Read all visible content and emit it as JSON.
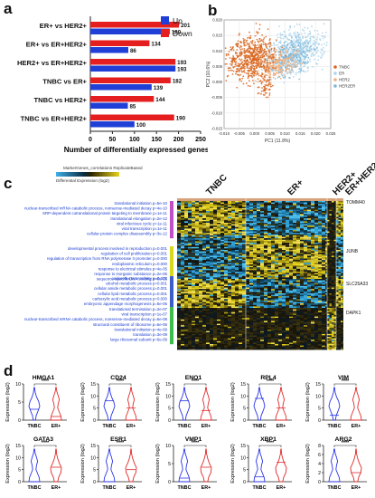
{
  "panel_labels": {
    "a": "a",
    "b": "b",
    "c": "c",
    "d": "d"
  },
  "chart_data": [
    {
      "type": "bar",
      "panel": "a",
      "categories": [
        "ER+ vs HER2+",
        "ER+ vs ER+HER2+",
        "HER2+ vs ER+HER2+",
        "TNBC vs ER+",
        "TNBC vs HER2+",
        "TNBC vs ER+HER2+"
      ],
      "series": [
        {
          "name": "Up",
          "color": "#1f3fd6",
          "values": [
            180,
            86,
            193,
            139,
            85,
            100
          ]
        },
        {
          "name": "Down",
          "color": "#e51f1f",
          "values": [
            201,
            134,
            193,
            182,
            144,
            190
          ]
        }
      ],
      "xlabel": "Number of differentially expressed genes",
      "xlim": [
        0,
        250
      ],
      "xticks": [
        0,
        50,
        100,
        150,
        200,
        250
      ],
      "legend": "top-right"
    },
    {
      "type": "scatter",
      "panel": "b",
      "xlabel": "PC1 (11.8%)",
      "ylabel": "PC2 (10.6%)",
      "xlim": [
        -0.01,
        0.025
      ],
      "ylim": [
        -0.015,
        0.02
      ],
      "xticks": [
        "-0.010",
        "-0.005",
        "0.000",
        "0.005",
        "0.010",
        "0.015",
        "0.020",
        "0.025"
      ],
      "yticks": [
        "0.020",
        "0.015",
        "0.010",
        "0.005",
        "0.000",
        "-0.005",
        "-0.010",
        "-0.015"
      ],
      "series": [
        {
          "name": "TNBC",
          "color": "#d9661e"
        },
        {
          "name": "ER",
          "color": "#a8d4ec"
        },
        {
          "name": "HER2",
          "color": "#f0b080"
        },
        {
          "name": "HER2ER",
          "color": "#7fb6d6"
        }
      ],
      "legend": "right"
    },
    {
      "type": "heatmap",
      "panel": "c",
      "title": "MarkerGenes_correlations ReplicateBased",
      "colorbar_label": "Differential Expression (log2)",
      "column_groups": [
        "TNBC",
        "ER+",
        "HER2+",
        "ER+HER2+"
      ],
      "gene_labels": [
        "TOMM40",
        "JUNB",
        "SLC25A33",
        "DAPK1"
      ],
      "term_blocks": [
        {
          "color": "#c04fc7",
          "terms": [
            "translational initiation p=5e-10",
            "nuclear-transcribed mRNA catabolic process, nonsense-mediated decay p=4e-10",
            "SRP-dependent cotranslational protein targeting to membrane p=1e-11",
            "translational elongation p=2e-12",
            "viral infectious cycle p=1e-11",
            "viral transcription p=1e-11",
            "cellular protein complex disassembly p=3e-12"
          ]
        },
        {
          "color": "#d8d81c",
          "terms": [
            "developmental process involved in reproduction p=0.001",
            "regulation of cell proliferation p=0.001",
            "regulation of transcription from RNA polymerase II promoter p=0.000",
            "endoplasmic reticulum p=0.000",
            "response to electrical stimulus p=4e-05",
            "response to inorganic substance p=2e-05",
            "sequence-specific DNA binding p=6e-05"
          ]
        },
        {
          "color": "#3d5ec9",
          "terms": [
            "oxidoreductase activity p=0.002",
            "alcohol metabolic process p=0.001",
            "cellular amide metabolic process p=0.001",
            "cellular lipid metabolic process p=0.001",
            "carboxylic acid metabolic process p=0.000",
            "embryonic appendage morphogenesis p=6e-05"
          ]
        },
        {
          "color": "#3cbd4c",
          "terms": [
            "translational termination p=2e-07",
            "viral transcription p=1e-07",
            "nuclear-transcribed mRNA catabolic process, nonsense-mediated decay p=6e-08",
            "structural constituent of ribosome p=6e-06",
            "translational initiation p=4e-09",
            "translation p=3e-09",
            "large ribosomal subunit p=6e-09"
          ]
        }
      ]
    },
    {
      "type": "violin",
      "panel": "d",
      "ylabel": "Expression (log2)",
      "groups": [
        "TNBC",
        "ER+"
      ],
      "significance": "****",
      "genes": [
        {
          "gene": "HMGA1",
          "yticks": [
            "10",
            "5",
            "0"
          ],
          "ymax": 10,
          "tnbc_median": 3,
          "er_median": 1
        },
        {
          "gene": "CD24",
          "yticks": [
            "15",
            "10",
            "5",
            "0"
          ],
          "ymax": 15,
          "tnbc_median": 8,
          "er_median": 5
        },
        {
          "gene": "ENO1",
          "yticks": [
            "15",
            "10",
            "5",
            "0"
          ],
          "ymax": 15,
          "tnbc_median": 8,
          "er_median": 4
        },
        {
          "gene": "RPL4",
          "yticks": [
            "15",
            "10",
            "5",
            "0"
          ],
          "ymax": 15,
          "tnbc_median": 9,
          "er_median": 5
        },
        {
          "gene": "VIM",
          "yticks": [
            "15",
            "10",
            "5",
            "0"
          ],
          "ymax": 15,
          "tnbc_median": 2,
          "er_median": 0
        },
        {
          "gene": "GATA3",
          "yticks": [
            "15",
            "10",
            "5",
            "0"
          ],
          "ymax": 15,
          "tnbc_median": 0,
          "er_median": 6
        },
        {
          "gene": "ESR1",
          "yticks": [
            "15",
            "10",
            "5",
            "0"
          ],
          "ymax": 15,
          "tnbc_median": 0,
          "er_median": 5
        },
        {
          "gene": "VMP1",
          "yticks": [
            "10",
            "5",
            "0"
          ],
          "ymax": 10,
          "tnbc_median": 1,
          "er_median": 4
        },
        {
          "gene": "XBP1",
          "yticks": [
            "15",
            "10",
            "5",
            "0"
          ],
          "ymax": 15,
          "tnbc_median": 2,
          "er_median": 8
        },
        {
          "gene": "ARG2",
          "yticks": [
            "8",
            "6",
            "4",
            "2",
            "0"
          ],
          "ymax": 8,
          "tnbc_median": 0,
          "er_median": 2
        }
      ]
    }
  ]
}
